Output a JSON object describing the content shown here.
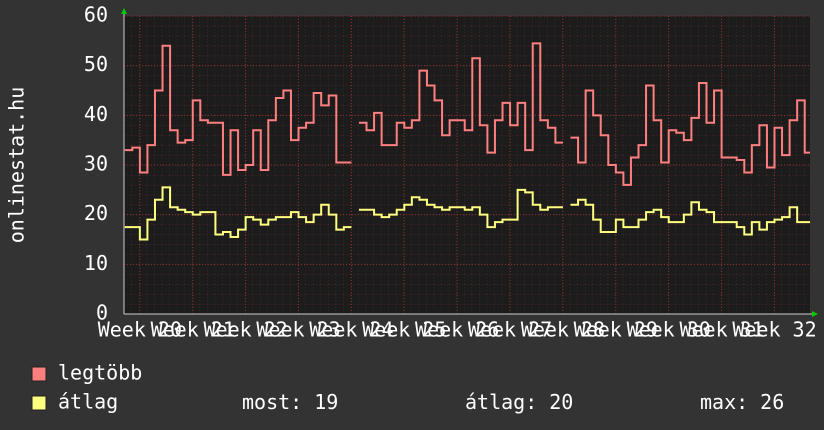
{
  "chart_data": {
    "type": "step-line",
    "ylabel": "onlinestat.hu",
    "x": [
      -2,
      -1,
      0,
      1,
      2,
      3,
      4,
      5,
      6,
      7,
      8,
      9,
      10,
      11,
      12,
      13,
      14,
      15,
      16,
      17,
      18,
      19,
      20,
      21,
      22,
      23,
      24,
      25,
      26,
      27,
      28,
      29,
      30,
      31,
      32,
      33,
      34,
      35,
      36,
      37,
      38,
      39,
      40,
      41,
      42,
      43,
      44,
      45,
      46,
      47,
      48,
      49,
      50,
      51,
      52,
      53,
      54,
      55,
      56,
      57,
      58,
      59,
      60,
      61,
      62,
      63,
      64,
      65,
      66,
      67,
      68,
      69,
      70,
      71,
      72,
      73,
      74,
      75,
      76,
      77,
      78,
      79,
      80,
      81,
      82,
      83,
      84,
      85,
      86,
      87,
      88
    ],
    "xlim": [
      -2.1,
      88.7
    ],
    "xticks": [
      {
        "value": 0,
        "label": "Week 20"
      },
      {
        "value": 7,
        "label": "Week 21"
      },
      {
        "value": 14,
        "label": "Week 22"
      },
      {
        "value": 21,
        "label": "Week 23"
      },
      {
        "value": 28,
        "label": "Week 24"
      },
      {
        "value": 35,
        "label": "Week 25"
      },
      {
        "value": 42,
        "label": "Week 26"
      },
      {
        "value": 49,
        "label": "Week 27"
      },
      {
        "value": 56,
        "label": "Week 28"
      },
      {
        "value": 63,
        "label": "Week 29"
      },
      {
        "value": 70,
        "label": "Week 30"
      },
      {
        "value": 77,
        "label": "Week 31"
      },
      {
        "value": 84,
        "label": "Week 32"
      }
    ],
    "ylim": [
      0,
      60
    ],
    "yticks": [
      0,
      10,
      20,
      30,
      40,
      50,
      60
    ],
    "grid": true,
    "series": [
      {
        "name": "legtöbb",
        "color": "#ff7f7f",
        "values": [
          33,
          33.5,
          28.5,
          34,
          45,
          54,
          37,
          34.5,
          35,
          43,
          39,
          38.5,
          38.5,
          28,
          37,
          29,
          30,
          37,
          29,
          39,
          43.5,
          45,
          35,
          37.5,
          38.5,
          44.5,
          42,
          44,
          30.5,
          30.5,
          null,
          38.5,
          37,
          40.5,
          34,
          34,
          38.5,
          37.5,
          39,
          49,
          46,
          43,
          36,
          39,
          39,
          37,
          51.5,
          38,
          32.5,
          39,
          42.5,
          38,
          42.5,
          33,
          54.5,
          39,
          37.5,
          34.5,
          null,
          35.5,
          30.5,
          45,
          40,
          36,
          30,
          28.5,
          26,
          31.5,
          34,
          46,
          39,
          30.5,
          37,
          36.5,
          35,
          39.5,
          46.5,
          38.5,
          45,
          31.5,
          31.5,
          31,
          28.5,
          34,
          38,
          29.5,
          37.5,
          32,
          39,
          43,
          32.5
        ]
      },
      {
        "name": "átlag",
        "color": "#ffff7f",
        "values": [
          17.5,
          17.5,
          15,
          19,
          23,
          25.5,
          21.5,
          21,
          20.5,
          20,
          20.5,
          20.5,
          16,
          16.5,
          15.5,
          17,
          19.5,
          19,
          18,
          19,
          19.5,
          19.5,
          20.5,
          19.5,
          18.5,
          20,
          22,
          20,
          17,
          17.5,
          null,
          21,
          21,
          20,
          19.5,
          20,
          21,
          22,
          23.5,
          23,
          22,
          21.5,
          21,
          21.5,
          21.5,
          21,
          21.5,
          20,
          17.5,
          18.5,
          19,
          19,
          25,
          24.5,
          22,
          21,
          21.5,
          21.5,
          null,
          22,
          23,
          22,
          19,
          16.5,
          16.5,
          19,
          17.5,
          17.5,
          19,
          20.5,
          21,
          19.5,
          18.5,
          18.5,
          20,
          22.5,
          21,
          20.5,
          18.5,
          18.5,
          18.5,
          17.5,
          16,
          18.5,
          17,
          18.5,
          19,
          19.5,
          21.5,
          18.5,
          18.5
        ]
      }
    ],
    "stats": [
      {
        "label": "most:",
        "value": 19
      },
      {
        "label": "átlag:",
        "value": 20
      },
      {
        "label": "max:",
        "value": 26
      }
    ]
  }
}
